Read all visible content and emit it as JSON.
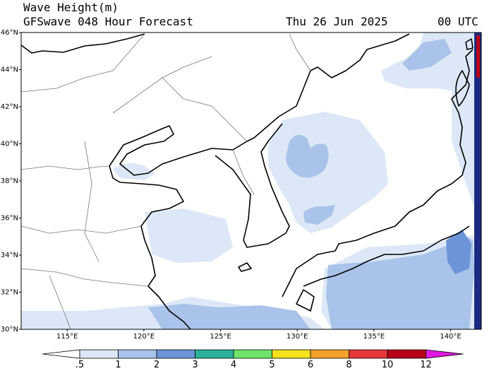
{
  "header": {
    "title": "Wave Height(m)",
    "model": "GFSwave 048 Hour Forecast",
    "date": "Thu 26 Jun 2025",
    "time": "00 UTC"
  },
  "map": {
    "lat_range": [
      30,
      46
    ],
    "lon_range": [
      112,
      142
    ],
    "lat_labels": [
      "46°N",
      "44°N",
      "42°N",
      "40°N",
      "38°N",
      "36°N",
      "34°N",
      "32°N",
      "30°N"
    ],
    "lon_labels": [
      "115°E",
      "120°E",
      "125°E",
      "130°E",
      "135°E",
      "140°E"
    ]
  },
  "colorbar": {
    "labels": [
      ".5",
      "1",
      "2",
      "3",
      "4",
      "5",
      "6",
      "8",
      "10",
      "12"
    ],
    "colors": [
      "#ffffff",
      "#dce8f7",
      "#a9c3ea",
      "#6b95d8",
      "#2bb29a",
      "#6ee46a",
      "#f3e21c",
      "#f3a12a",
      "#e5383b",
      "#b80017",
      "#e018e0"
    ]
  }
}
